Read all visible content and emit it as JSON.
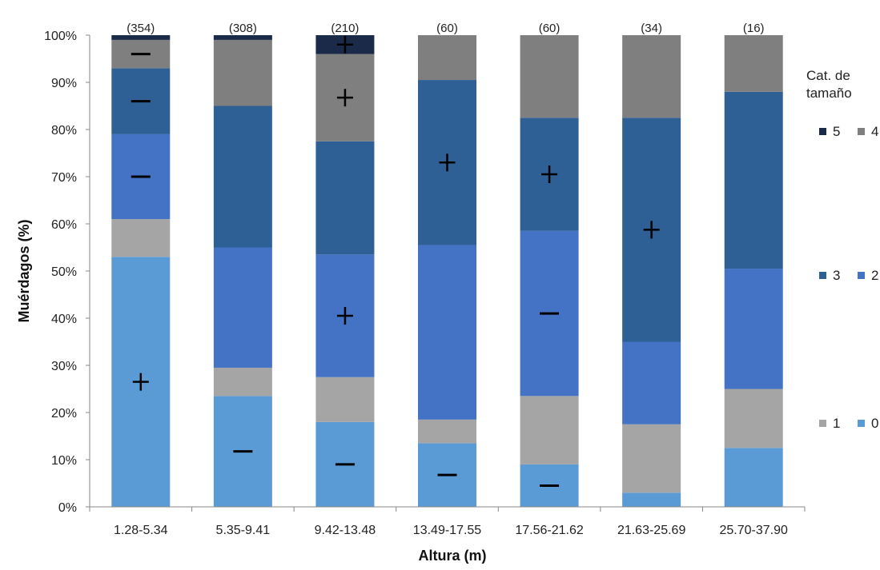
{
  "chart_data": {
    "type": "bar",
    "stacked": true,
    "ylabel": "Muérdagos (%)",
    "xlabel": "Altura (m)",
    "ylim": [
      0,
      100
    ],
    "yticks": [
      "0%",
      "10%",
      "20%",
      "30%",
      "40%",
      "50%",
      "60%",
      "70%",
      "80%",
      "90%",
      "100%"
    ],
    "categories": [
      "1.28-5.34",
      "5.35-9.41",
      "9.42-13.48",
      "13.49-17.55",
      "17.56-21.62",
      "21.63-25.69",
      "25.70-37.90"
    ],
    "counts": [
      "(354)",
      "(308)",
      "(210)",
      "(60)",
      "(60)",
      "(34)",
      "(16)"
    ],
    "series": [
      {
        "name": "0",
        "color": "#5b9bd5",
        "values": [
          53,
          23.5,
          18,
          13.5,
          9,
          3,
          12.5
        ]
      },
      {
        "name": "1",
        "color": "#a5a5a5",
        "values": [
          8,
          6,
          9.5,
          5,
          14.5,
          14.5,
          12.5
        ]
      },
      {
        "name": "2",
        "color": "#4472c4",
        "values": [
          18,
          25.5,
          26,
          37,
          35,
          17.5,
          25.5
        ]
      },
      {
        "name": "3",
        "color": "#2e6096",
        "values": [
          14,
          30,
          24,
          35,
          24,
          47.5,
          37.5
        ]
      },
      {
        "name": "4",
        "color": "#7f7f7f",
        "values": [
          6,
          14,
          18.5,
          9.5,
          17.5,
          17.5,
          12
        ]
      },
      {
        "name": "5",
        "color": "#1b2a48",
        "values": [
          1,
          1,
          4,
          0,
          0,
          0,
          0
        ]
      }
    ],
    "significance": [
      {
        "category": 0,
        "series": "0",
        "symbol": "+"
      },
      {
        "category": 0,
        "series": "2",
        "symbol": "−"
      },
      {
        "category": 0,
        "series": "3",
        "symbol": "−"
      },
      {
        "category": 0,
        "series": "4",
        "symbol": "−"
      },
      {
        "category": 1,
        "series": "0",
        "symbol": "−"
      },
      {
        "category": 2,
        "series": "0",
        "symbol": "−"
      },
      {
        "category": 2,
        "series": "2",
        "symbol": "+"
      },
      {
        "category": 2,
        "series": "4",
        "symbol": "+"
      },
      {
        "category": 2,
        "series": "5",
        "symbol": "+"
      },
      {
        "category": 3,
        "series": "0",
        "symbol": "−"
      },
      {
        "category": 3,
        "series": "3",
        "symbol": "+"
      },
      {
        "category": 4,
        "series": "0",
        "symbol": "−"
      },
      {
        "category": 4,
        "series": "2",
        "symbol": "−"
      },
      {
        "category": 4,
        "series": "3",
        "symbol": "+"
      },
      {
        "category": 5,
        "series": "3",
        "symbol": "+"
      }
    ],
    "legend": {
      "title": [
        "Cat. de",
        "tamaño"
      ],
      "placement": "right",
      "items": [
        [
          "5",
          "4"
        ],
        [
          "3",
          "2"
        ],
        [
          "1",
          "0"
        ]
      ]
    }
  }
}
